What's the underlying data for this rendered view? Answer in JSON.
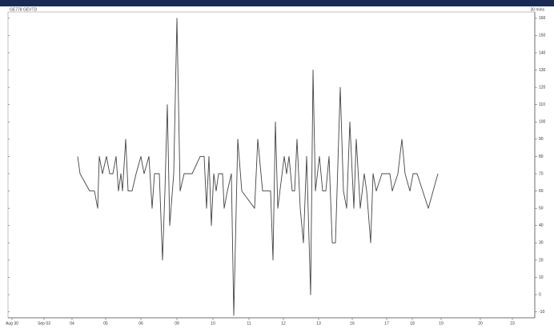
{
  "chart_data": {
    "type": "line",
    "header_left": "GE778 GEVTD",
    "header_right": "30 mins",
    "color": "#444444",
    "x": [
      87,
      90,
      102,
      108,
      112,
      114,
      118,
      123,
      127,
      131,
      135,
      138,
      141,
      143,
      147,
      150,
      155,
      160,
      166,
      170,
      176,
      180,
      183,
      189,
      193,
      196,
      199,
      202,
      207,
      211,
      215,
      220,
      230,
      240,
      245,
      248,
      251,
      254,
      257,
      260,
      263,
      268,
      270,
      274,
      279,
      282,
      287,
      292,
      308,
      312,
      318,
      328,
      331,
      334,
      337,
      345,
      348,
      351,
      355,
      358,
      361,
      365,
      369,
      373,
      378,
      381,
      384,
      389,
      393,
      397,
      401,
      405,
      409,
      415,
      419,
      423,
      427,
      432,
      435,
      440,
      445,
      448,
      453,
      456,
      460,
      467,
      477,
      480,
      487,
      492,
      496,
      502,
      506,
      511,
      518,
      525,
      537
    ],
    "values": [
      80,
      70,
      60,
      60,
      50,
      80,
      70,
      80,
      70,
      70,
      80,
      60,
      70,
      60,
      90,
      60,
      60,
      70,
      80,
      70,
      80,
      50,
      70,
      70,
      20,
      60,
      110,
      40,
      70,
      160,
      60,
      70,
      70,
      80,
      80,
      50,
      80,
      40,
      70,
      60,
      70,
      70,
      50,
      60,
      70,
      -12,
      90,
      60,
      50,
      90,
      60,
      60,
      20,
      100,
      50,
      80,
      70,
      80,
      60,
      60,
      90,
      50,
      30,
      80,
      0,
      130,
      60,
      80,
      60,
      60,
      80,
      30,
      30,
      120,
      60,
      50,
      100,
      50,
      90,
      50,
      70,
      60,
      30,
      70,
      60,
      70,
      70,
      60,
      70,
      90,
      70,
      60,
      70,
      70,
      60,
      50,
      70
    ],
    "xlim": [
      0,
      658
    ],
    "xticks": [
      {
        "value": 5,
        "label": "Aug 30"
      },
      {
        "value": 45,
        "label": "Sep 03"
      },
      {
        "value": 80,
        "label": "04"
      },
      {
        "value": 122,
        "label": "05"
      },
      {
        "value": 166,
        "label": "06"
      },
      {
        "value": 211,
        "label": "09"
      },
      {
        "value": 256,
        "label": "10"
      },
      {
        "value": 301,
        "label": "11"
      },
      {
        "value": 344,
        "label": "12"
      },
      {
        "value": 388,
        "label": "13"
      },
      {
        "value": 430,
        "label": "16"
      },
      {
        "value": 473,
        "label": "17"
      },
      {
        "value": 505,
        "label": "18"
      },
      {
        "value": 541,
        "label": "19"
      },
      {
        "value": 590,
        "label": "20"
      },
      {
        "value": 630,
        "label": "23"
      }
    ],
    "ylim": [
      -12,
      165
    ],
    "yticks": [
      -10,
      0,
      10,
      20,
      30,
      40,
      50,
      60,
      70,
      80,
      90,
      100,
      110,
      120,
      130,
      140,
      150,
      160
    ]
  }
}
